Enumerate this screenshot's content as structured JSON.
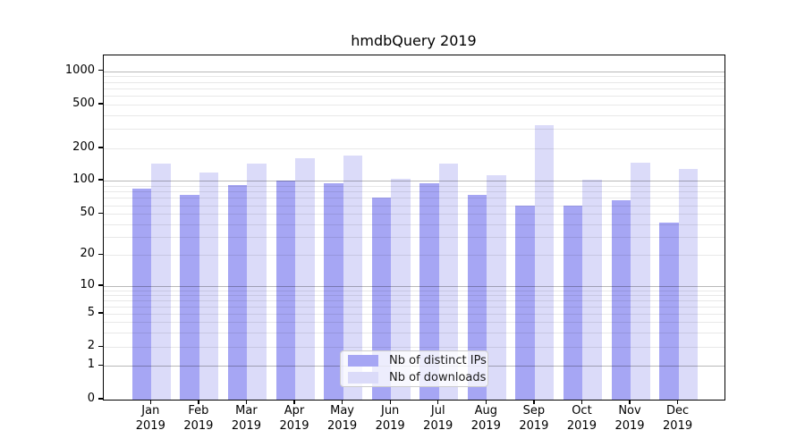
{
  "chart_data": {
    "type": "bar",
    "title": "hmdbQuery 2019",
    "categories": [
      "Jan",
      "Feb",
      "Mar",
      "Apr",
      "May",
      "Jun",
      "Jul",
      "Aug",
      "Sep",
      "Oct",
      "Nov",
      "Dec"
    ],
    "x_year": "2019",
    "series": [
      {
        "name": "Nb of distinct IPs",
        "color": "#a6a6f4",
        "values": [
          85,
          74,
          91,
          100,
          94,
          70,
          94,
          75,
          59,
          59,
          67,
          41
        ]
      },
      {
        "name": "Nb of downloads",
        "color": "#dbdbf9",
        "values": [
          144,
          119,
          145,
          162,
          172,
          104,
          143,
          112,
          325,
          102,
          148,
          128
        ]
      }
    ],
    "yscale": "symlog",
    "yticks": [
      0,
      1,
      2,
      5,
      10,
      20,
      50,
      100,
      200,
      500,
      1000
    ],
    "ylim": [
      0,
      1400
    ],
    "grid": true,
    "legend_position": "lower-center",
    "colors": {
      "bar_distinct_ips": "#a6a6f4",
      "bar_downloads": "#dbdbf9",
      "grid_major": "#b8b8b8",
      "grid_minor": "#ececec",
      "axis": "#000000",
      "background": "#ffffff"
    }
  }
}
